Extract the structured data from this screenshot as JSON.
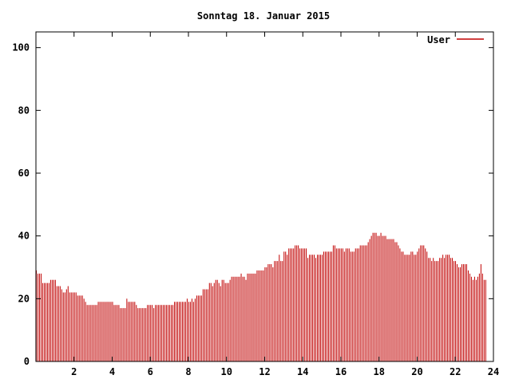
{
  "chart_data": {
    "type": "bar",
    "title": "Sonntag 18. Januar 2015",
    "xlabel": "",
    "ylabel": "",
    "xlim": [
      0,
      24
    ],
    "ylim": [
      0,
      105
    ],
    "x_ticks": [
      "2",
      "4",
      "6",
      "8",
      "10",
      "12",
      "14",
      "16",
      "18",
      "20",
      "22",
      "24"
    ],
    "y_ticks": [
      "0",
      "20",
      "40",
      "60",
      "80",
      "100"
    ],
    "grid": false,
    "legend_position": "top-right",
    "bar_color": "#c00000",
    "series": [
      {
        "name": "User",
        "color": "#c00000",
        "x_step_hours": 0.0833,
        "values": [
          29,
          28,
          28,
          28,
          25,
          25,
          25,
          25,
          25,
          26,
          26,
          26,
          26,
          24,
          24,
          24,
          23,
          22,
          22,
          23,
          24,
          22,
          22,
          22,
          22,
          22,
          21,
          21,
          21,
          21,
          20,
          19,
          18,
          18,
          18,
          18,
          18,
          18,
          18,
          19,
          19,
          19,
          19,
          19,
          19,
          19,
          19,
          19,
          19,
          18,
          18,
          18,
          18,
          17,
          17,
          17,
          17,
          20,
          19,
          19,
          19,
          19,
          19,
          18,
          17,
          17,
          17,
          17,
          17,
          17,
          18,
          18,
          18,
          18,
          17,
          18,
          18,
          18,
          18,
          18,
          18,
          18,
          18,
          18,
          18,
          18,
          18,
          19,
          19,
          19,
          19,
          19,
          19,
          19,
          19,
          20,
          19,
          19,
          20,
          19,
          20,
          21,
          21,
          21,
          21,
          23,
          23,
          23,
          23,
          25,
          25,
          24,
          25,
          26,
          26,
          25,
          24,
          26,
          26,
          25,
          25,
          25,
          26,
          27,
          27,
          27,
          27,
          27,
          27,
          28,
          27,
          27,
          26,
          28,
          28,
          28,
          28,
          28,
          28,
          29,
          29,
          29,
          29,
          29,
          30,
          30,
          31,
          31,
          31,
          30,
          32,
          32,
          32,
          34,
          32,
          32,
          35,
          35,
          34,
          36,
          36,
          36,
          36,
          37,
          37,
          37,
          36,
          36,
          36,
          36,
          36,
          33,
          34,
          34,
          34,
          34,
          33,
          34,
          34,
          34,
          34,
          35,
          35,
          35,
          35,
          35,
          35,
          37,
          37,
          36,
          36,
          36,
          36,
          36,
          35,
          36,
          36,
          36,
          35,
          35,
          35,
          36,
          36,
          36,
          37,
          37,
          37,
          37,
          37,
          38,
          39,
          40,
          41,
          41,
          41,
          40,
          40,
          41,
          40,
          40,
          40,
          39,
          39,
          39,
          39,
          39,
          38,
          38,
          37,
          36,
          35,
          35,
          34,
          34,
          34,
          34,
          35,
          35,
          34,
          34,
          35,
          36,
          37,
          37,
          37,
          36,
          35,
          33,
          33,
          32,
          33,
          32,
          32,
          32,
          33,
          33,
          34,
          33,
          34,
          34,
          34,
          33,
          33,
          32,
          32,
          31,
          30,
          30,
          31,
          31,
          31,
          31,
          29,
          28,
          27,
          26,
          27,
          26,
          27,
          28,
          31,
          28,
          26,
          26
        ]
      }
    ]
  }
}
